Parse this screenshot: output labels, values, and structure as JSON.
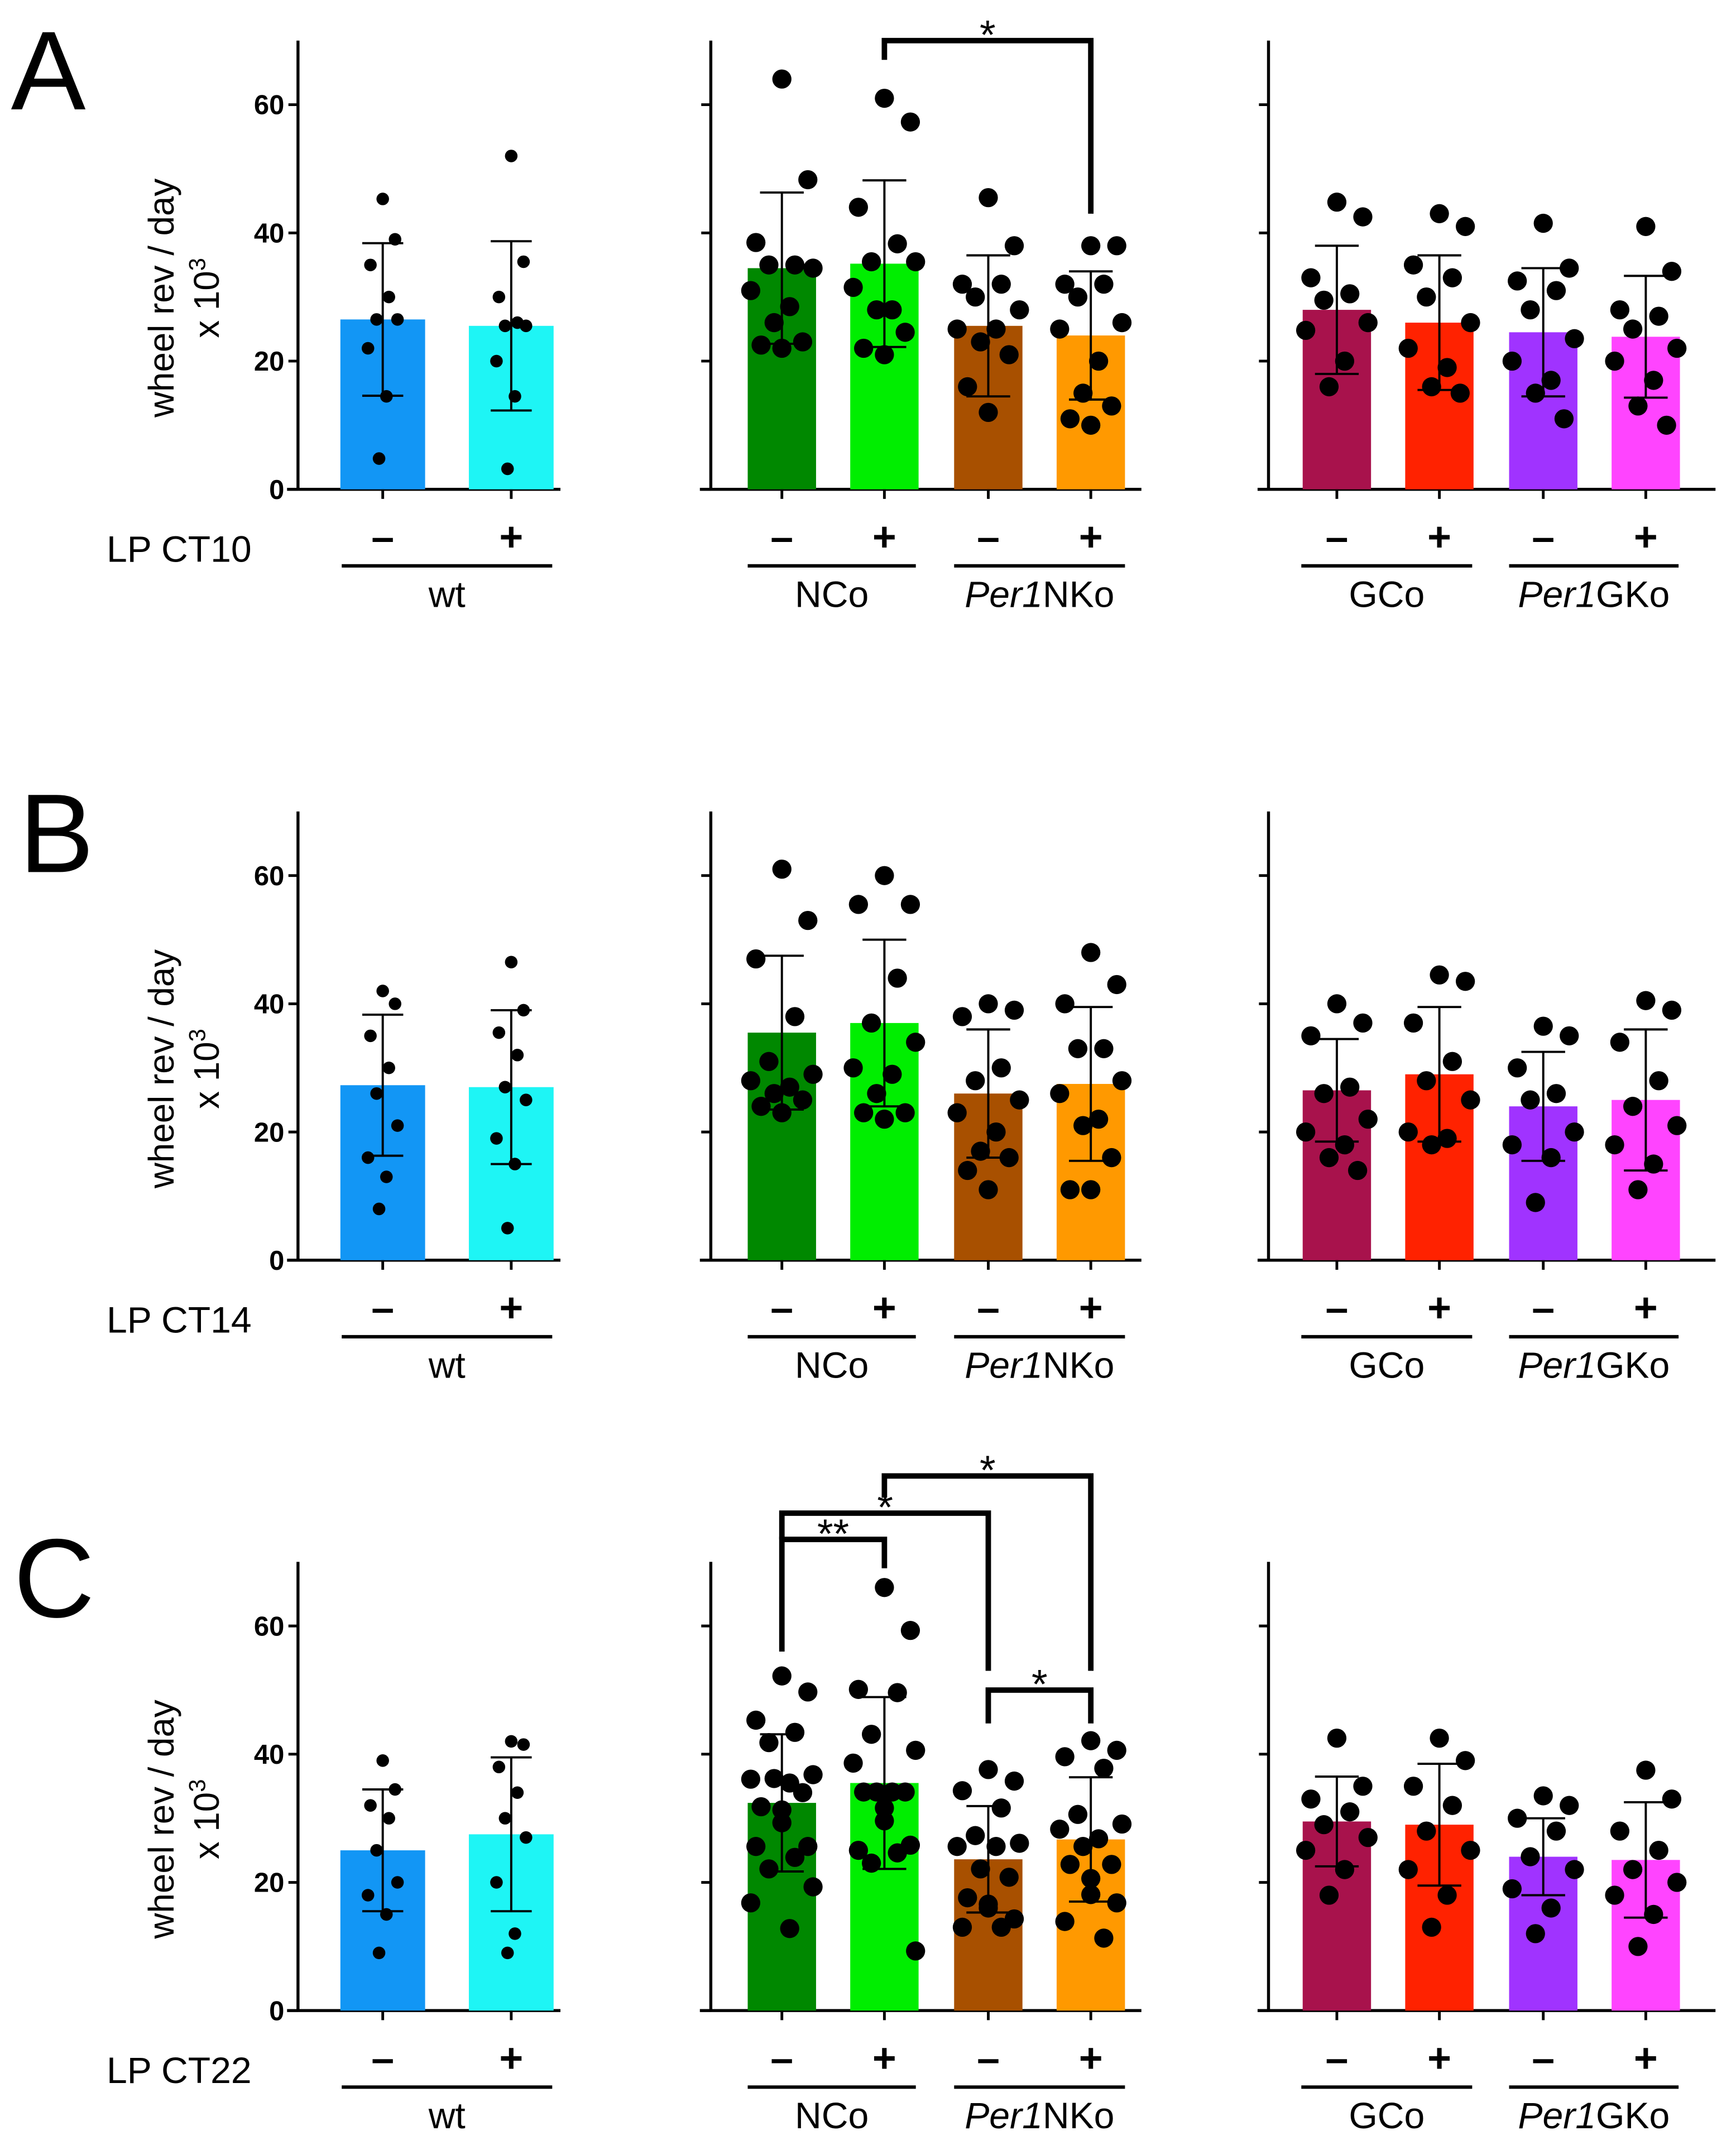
{
  "chart_data": {
    "type": "bar",
    "ylabel": "wheel rev / day",
    "ylabel_unit": "x 10",
    "ylabel_unit_exp": "3",
    "yticks": [
      "0",
      "20",
      "40",
      "60"
    ],
    "ylim": [
      0,
      70
    ],
    "sign_labels": {
      "minus": "–",
      "plus": "+"
    },
    "groups": [
      {
        "name": "wt",
        "italic_prefix": "",
        "text": "wt"
      },
      {
        "name": "NCo",
        "italic_prefix": "",
        "text": "NCo"
      },
      {
        "name": "Per1NKo",
        "italic_prefix": "Per1",
        "text": "NKo"
      },
      {
        "name": "GCo",
        "italic_prefix": "",
        "text": "GCo"
      },
      {
        "name": "Per1GKo",
        "italic_prefix": "Per1",
        "text": "GKo"
      }
    ],
    "bar_colors": [
      "#1296F5",
      "#1EF5F5",
      "#008800",
      "#00EE00",
      "#A85000",
      "#FF9900",
      "#A8124C",
      "#FF2200",
      "#A033FF",
      "#FF44FF"
    ],
    "bar_names": [
      "wt -",
      "wt +",
      "NCo -",
      "NCo +",
      "Per1NKo -",
      "Per1NKo +",
      "GCo -",
      "GCo +",
      "Per1GKo -",
      "Per1GKo +"
    ],
    "panels": [
      {
        "letter": "A",
        "condition": "LP CT10",
        "means": [
          26.5,
          25.5,
          34.5,
          35.2,
          25.5,
          24.0,
          28.0,
          26.0,
          24.5,
          23.8
        ],
        "sd": [
          11.9,
          13.2,
          11.8,
          13.0,
          11.0,
          10.0,
          10.0,
          10.5,
          10.0,
          9.5
        ],
        "points": [
          [
            45.3,
            39,
            35,
            30,
            26.5,
            26.5,
            22,
            14.5,
            4.8
          ],
          [
            52,
            35.5,
            30,
            26,
            25.5,
            25.5,
            20,
            14.5,
            3.2
          ],
          [
            64,
            48.3,
            38.5,
            35,
            35,
            34.5,
            31,
            28.5,
            26,
            23,
            22.5,
            22
          ],
          [
            61,
            57.3,
            44,
            38.3,
            35.5,
            35.5,
            31.5,
            28,
            28,
            24.5,
            22,
            21
          ],
          [
            45.5,
            38,
            32,
            32,
            30,
            28,
            25,
            25,
            23,
            21,
            16,
            12
          ],
          [
            38,
            38,
            32,
            32,
            30,
            26,
            25,
            20,
            15,
            13,
            11,
            10
          ],
          [
            44.8,
            42.5,
            33,
            30.5,
            29.5,
            26,
            24.8,
            20,
            16
          ],
          [
            43,
            41,
            35,
            33,
            30,
            26,
            22,
            19,
            16,
            15
          ],
          [
            41.5,
            34.5,
            32.5,
            31,
            28,
            23.5,
            20,
            17,
            15,
            11
          ],
          [
            41,
            34,
            28,
            27,
            25,
            22,
            20,
            17,
            13,
            10
          ]
        ],
        "significance": [
          {
            "from": 3,
            "to": 5,
            "label": "*",
            "level": 70,
            "from_end": 67,
            "to_end": 43
          }
        ]
      },
      {
        "letter": "B",
        "condition": "LP CT14",
        "means": [
          27.3,
          27.0,
          35.5,
          37.0,
          26.0,
          27.5,
          26.5,
          29.0,
          24.0,
          25.0
        ],
        "sd": [
          11.0,
          12.0,
          12.0,
          13.0,
          10.0,
          12.0,
          8.0,
          10.5,
          8.5,
          11.0
        ],
        "points": [
          [
            42,
            40,
            35,
            30,
            26,
            21,
            16,
            13,
            8
          ],
          [
            46.5,
            39,
            35.5,
            32,
            27,
            25,
            19,
            15,
            5
          ],
          [
            61,
            53,
            47,
            38,
            31,
            29,
            28,
            27,
            26,
            25,
            24,
            23
          ],
          [
            60,
            55.5,
            55.5,
            44,
            37,
            34,
            30,
            29,
            26,
            23,
            23,
            22
          ],
          [
            40,
            39,
            38,
            30,
            28,
            25,
            23,
            20,
            17,
            16,
            14,
            11
          ],
          [
            48,
            43,
            40,
            33,
            33,
            28,
            26,
            22,
            21,
            16,
            11,
            11
          ],
          [
            40,
            37,
            35,
            27,
            26,
            22,
            20,
            18,
            16,
            14
          ],
          [
            44.5,
            43.5,
            37,
            31,
            28,
            25,
            20,
            19,
            18
          ],
          [
            36.5,
            35,
            30,
            26,
            25,
            20,
            18,
            16,
            9
          ],
          [
            40.5,
            39,
            34,
            28,
            24,
            21,
            18,
            15,
            11
          ]
        ],
        "significance": []
      },
      {
        "letter": "C",
        "condition": "LP CT22",
        "means": [
          25.0,
          27.5,
          32.4,
          35.5,
          23.6,
          26.7,
          29.5,
          29.0,
          24.0,
          23.5
        ],
        "sd": [
          9.5,
          12.0,
          10.7,
          13.4,
          8.3,
          9.7,
          7.0,
          9.5,
          6.0,
          9.0
        ],
        "points": [
          [
            39,
            34.5,
            32,
            30,
            25,
            20,
            18,
            15,
            9
          ],
          [
            42,
            41.5,
            38,
            34,
            30,
            27,
            20,
            12,
            9
          ],
          [
            52.2,
            49.7,
            45.3,
            43.4,
            41.8,
            36.8,
            36.1,
            35.5,
            36.2,
            34,
            31.8,
            31.3,
            29.3,
            25.6,
            25.6,
            23.9,
            22.1,
            19.3,
            16.8,
            12.8
          ],
          [
            66,
            59.3,
            50.1,
            49.6,
            43.1,
            40.6,
            38.6,
            34.1,
            34.1,
            34.1,
            34.1,
            31.6,
            29.6,
            25.8,
            25,
            24.6,
            23,
            9.3
          ],
          [
            37.6,
            35.8,
            34.3,
            31.6,
            27.3,
            26.1,
            25.6,
            25.6,
            22.1,
            20.8,
            17.6,
            16.6,
            16,
            14.3,
            13,
            13
          ],
          [
            42.1,
            40.6,
            39.6,
            37.8,
            30.6,
            29.1,
            28.3,
            26.8,
            25.6,
            22.8,
            22.8,
            20.6,
            18.1,
            16.8,
            13.9,
            11.3
          ],
          [
            42.5,
            35,
            33,
            31,
            29,
            27,
            25,
            22,
            18
          ],
          [
            42.5,
            39,
            35,
            32,
            28,
            25,
            22,
            18,
            13
          ],
          [
            33.5,
            32,
            30,
            28,
            24,
            22,
            19,
            16,
            12
          ],
          [
            37.5,
            33,
            28,
            25,
            22,
            20,
            18,
            15,
            10
          ]
        ],
        "significance": [
          {
            "from": 2,
            "to": 3,
            "label": "**",
            "level": 73.5,
            "from_end": 56,
            "to_end": 69
          },
          {
            "from": 2,
            "to": 4,
            "label": "*",
            "level": 77.6,
            "from_end": 73.5,
            "to_end": 53
          },
          {
            "from": 3,
            "to": 5,
            "label": "*",
            "level": 83.4,
            "from_end": 80,
            "to_end": 53
          },
          {
            "from": 4,
            "to": 5,
            "label": "*",
            "level": 50,
            "from_end": 44.8,
            "to_end": 44.8
          }
        ]
      }
    ]
  }
}
